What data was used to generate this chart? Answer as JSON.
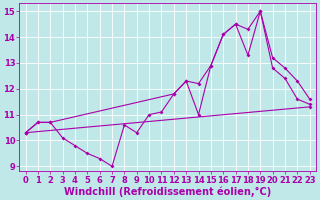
{
  "background_color": "#c0e8e8",
  "grid_color": "#ffffff",
  "line_color": "#aa00aa",
  "x_ticks": [
    0,
    1,
    2,
    3,
    4,
    5,
    6,
    7,
    8,
    9,
    10,
    11,
    12,
    13,
    14,
    15,
    16,
    17,
    18,
    19,
    20,
    21,
    22,
    23
  ],
  "ylim": [
    8.8,
    15.3
  ],
  "xlim": [
    -0.5,
    23.5
  ],
  "yticks": [
    9,
    10,
    11,
    12,
    13,
    14,
    15
  ],
  "xlabel": "Windchill (Refroidissement éolien,°C)",
  "line1_x": [
    0,
    1,
    2,
    3,
    4,
    5,
    6,
    7,
    8,
    9,
    10,
    11,
    12,
    13,
    14,
    15,
    16,
    17,
    18,
    19,
    20,
    21,
    22,
    23
  ],
  "line1_y": [
    10.3,
    10.7,
    10.7,
    10.1,
    9.8,
    9.5,
    9.3,
    9.0,
    10.6,
    10.3,
    11.0,
    11.1,
    11.8,
    12.3,
    11.0,
    12.9,
    14.1,
    14.5,
    14.3,
    15.0,
    13.2,
    12.8,
    12.3,
    11.6
  ],
  "line2_x": [
    0,
    1,
    2,
    12,
    13,
    14,
    15,
    16,
    17,
    18,
    19,
    20,
    21,
    22,
    23
  ],
  "line2_y": [
    10.3,
    10.7,
    10.7,
    11.8,
    12.3,
    12.2,
    12.9,
    14.1,
    14.5,
    13.3,
    15.0,
    12.8,
    12.4,
    11.6,
    11.4
  ],
  "line3_x": [
    0,
    23
  ],
  "line3_y": [
    10.3,
    11.3
  ],
  "tick_fontsize": 6,
  "xlabel_fontsize": 7,
  "marker": "D",
  "markersize": 2
}
